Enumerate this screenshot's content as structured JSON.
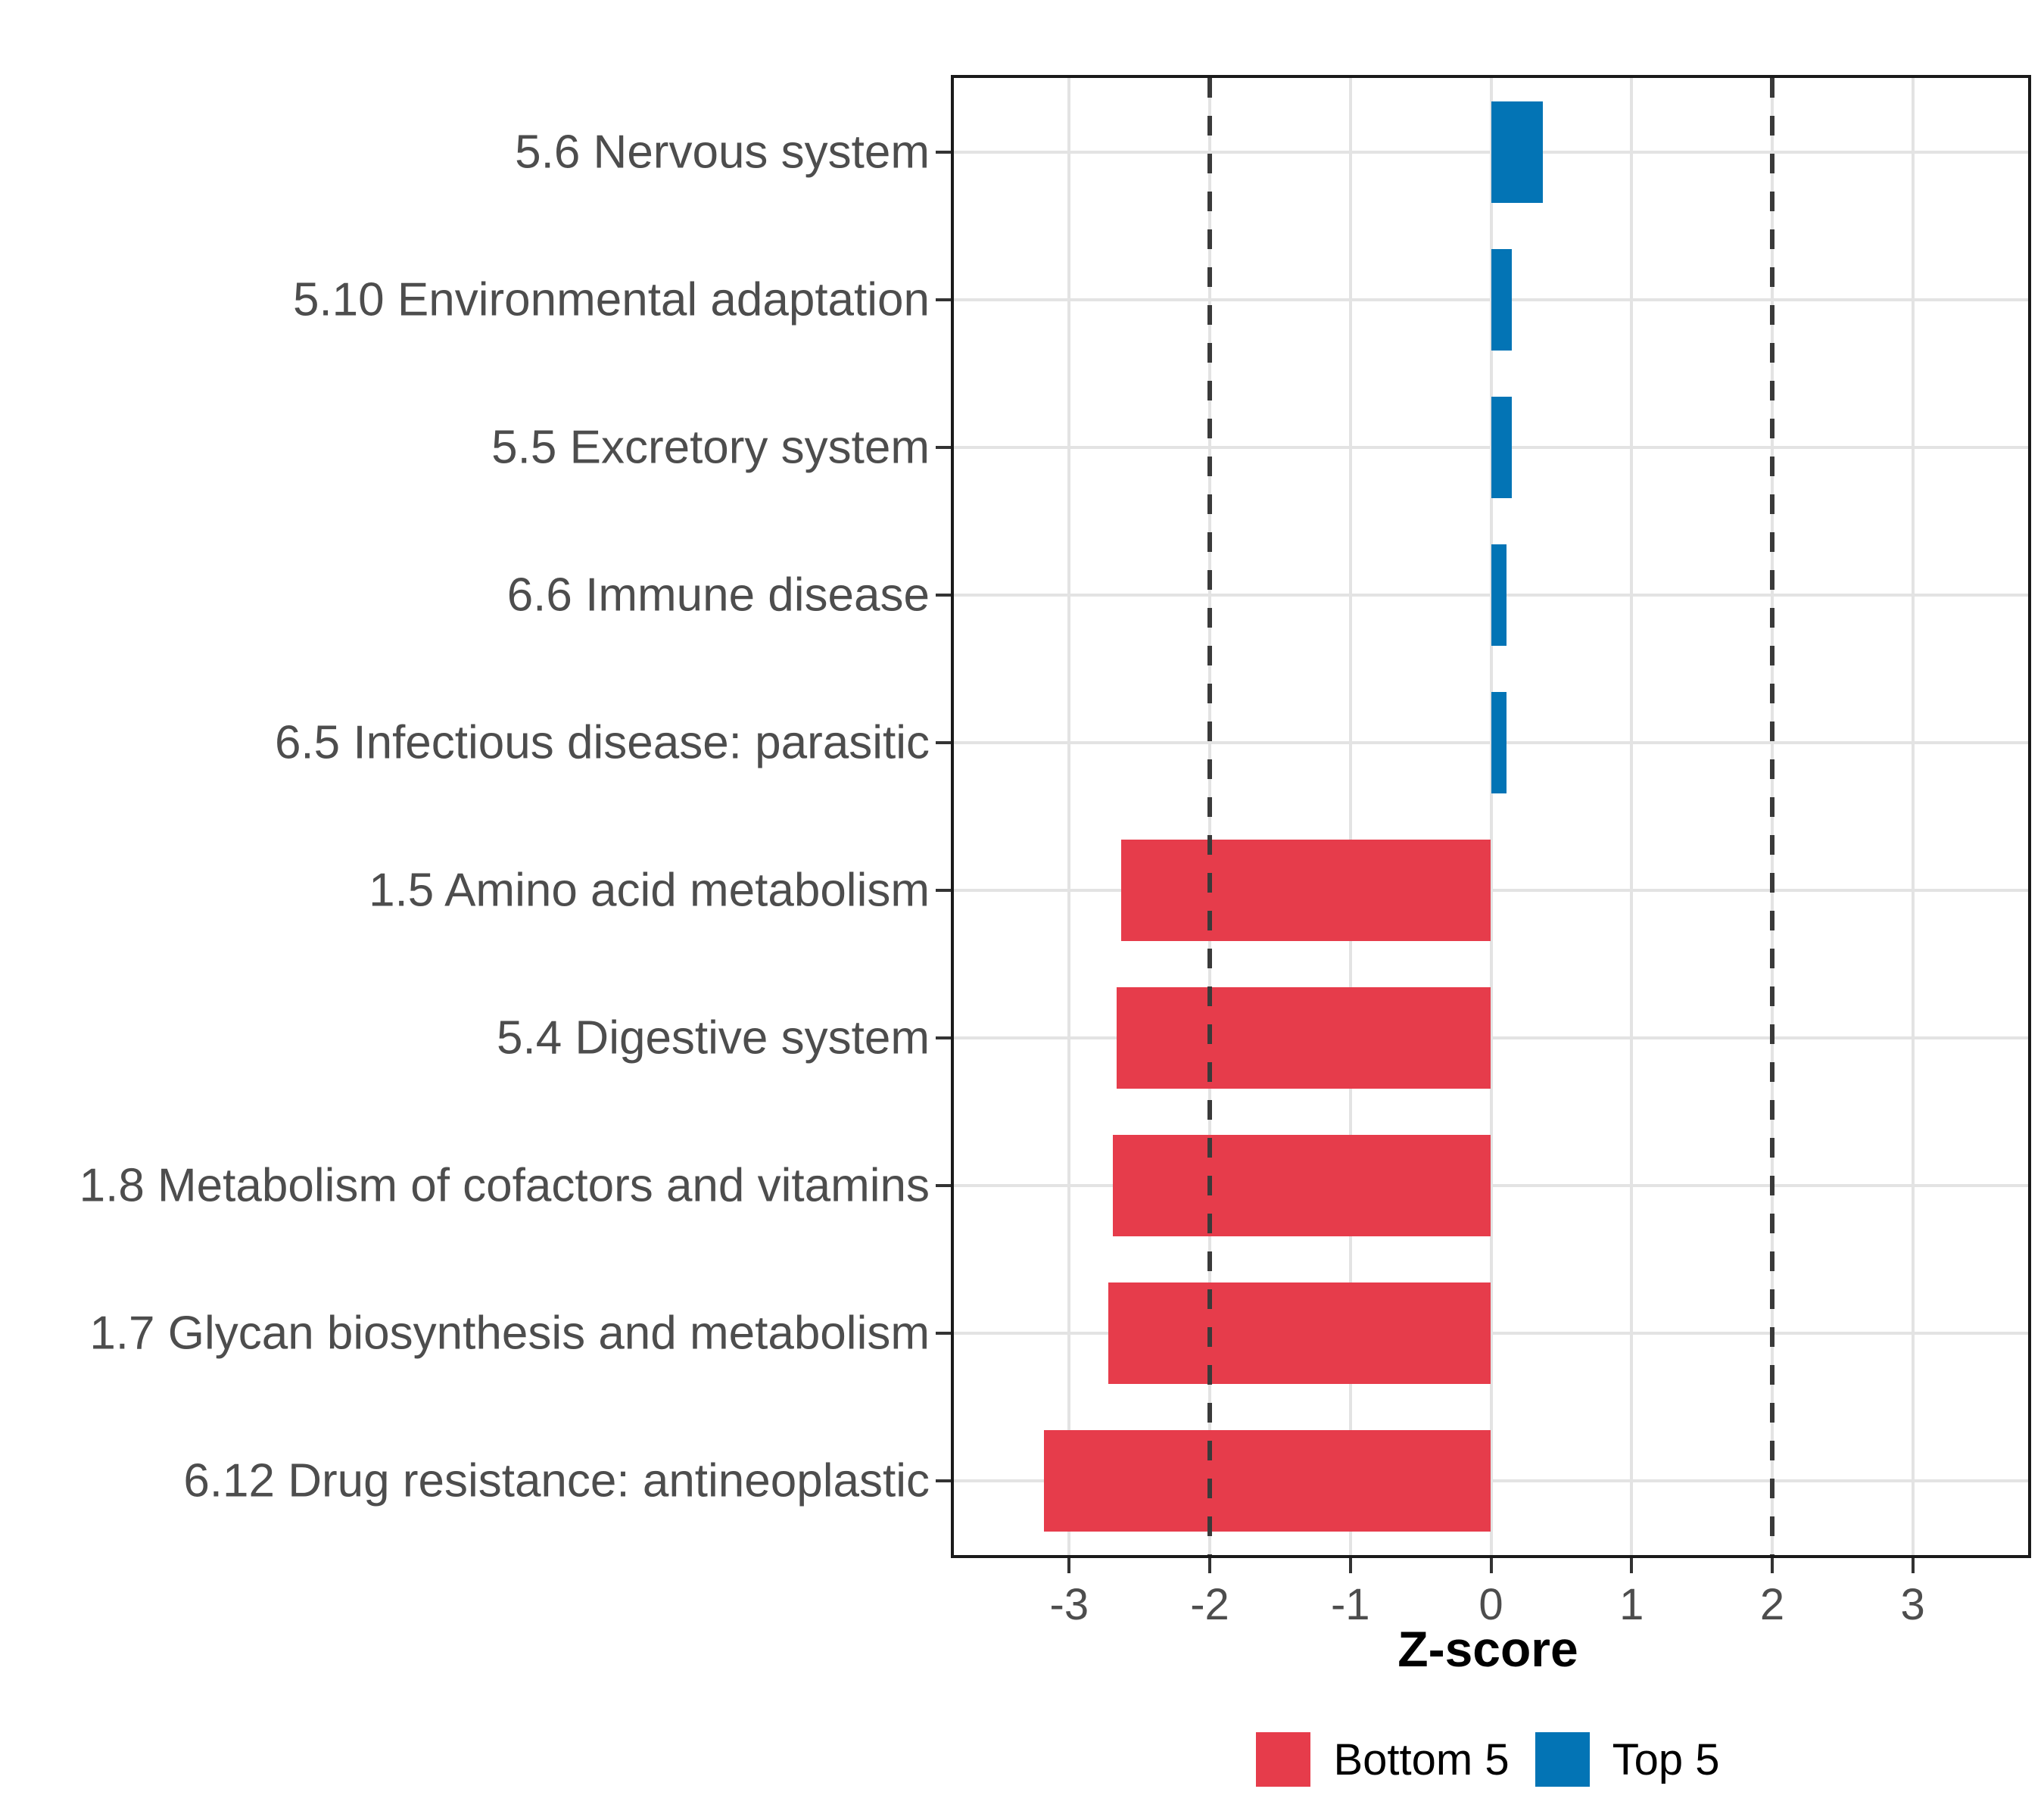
{
  "chart_data": {
    "type": "bar",
    "orientation": "horizontal",
    "title": "",
    "xlabel": "Z-score",
    "ylabel": "",
    "categories": [
      "5.6 Nervous system",
      "5.10 Environmental adaptation",
      "5.5 Excretory system",
      "6.6 Immune disease",
      "6.5 Infectious disease: parasitic",
      "1.5 Amino acid metabolism",
      "5.4 Digestive system",
      "1.8 Metabolism of cofactors and vitamins",
      "1.7 Glycan biosynthesis and metabolism",
      "6.12 Drug resistance: antineoplastic"
    ],
    "values": [
      0.37,
      0.15,
      0.15,
      0.11,
      0.11,
      -2.63,
      -2.66,
      -2.69,
      -2.72,
      -3.18
    ],
    "groups": [
      "Top 5",
      "Top 5",
      "Top 5",
      "Top 5",
      "Top 5",
      "Bottom 5",
      "Bottom 5",
      "Bottom 5",
      "Bottom 5",
      "Bottom 5"
    ],
    "colors": {
      "Bottom 5": "#E63C4B",
      "Top 5": "#0374B5"
    },
    "x_ticks": [
      -3,
      -2,
      -1,
      0,
      1,
      2,
      3
    ],
    "x_tick_labels": [
      "-3",
      "-2",
      "-1",
      "0",
      "1",
      "2",
      "3"
    ],
    "x_domain": [
      -3.82,
      3.82
    ],
    "threshold_lines": [
      -2,
      2
    ],
    "grid": "major",
    "legend_position": "bottom",
    "legend": {
      "entries": [
        {
          "label": "Bottom 5",
          "color": "#E63C4B"
        },
        {
          "label": "Top 5",
          "color": "#0374B5"
        }
      ]
    }
  },
  "style_colors": {
    "gridline": "#e3e3e3",
    "threshold_line": "#3a3a3a",
    "panel_border": "#1a1a1a",
    "axis_text": "#4d4d4d",
    "axis_title": "#000000",
    "background": "#ffffff"
  }
}
